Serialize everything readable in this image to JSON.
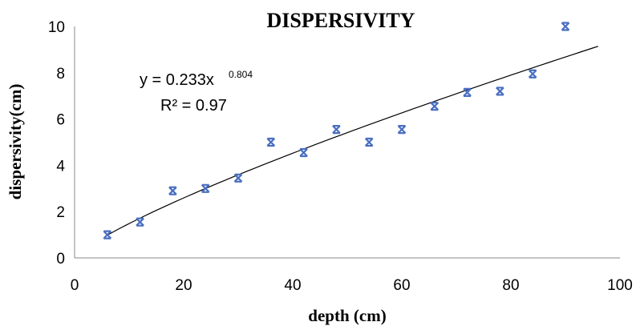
{
  "chart_data": {
    "type": "scatter",
    "title": "DISPERSIVITY",
    "xlabel": "depth (cm)",
    "ylabel": "dispersivity(cm)",
    "xlim": [
      0,
      100
    ],
    "ylim": [
      0,
      10
    ],
    "xticks": [
      "0",
      "20",
      "40",
      "60",
      "80",
      "100"
    ],
    "yticks": [
      "0",
      "2",
      "4",
      "6",
      "8",
      "10"
    ],
    "grid": false,
    "marker_color": "#4a6fc0",
    "points": [
      {
        "x": 6,
        "y": 1.0
      },
      {
        "x": 12,
        "y": 1.55
      },
      {
        "x": 18,
        "y": 2.9
      },
      {
        "x": 24,
        "y": 3.0
      },
      {
        "x": 30,
        "y": 3.45
      },
      {
        "x": 36,
        "y": 5.0
      },
      {
        "x": 42,
        "y": 4.55
      },
      {
        "x": 48,
        "y": 5.55
      },
      {
        "x": 54,
        "y": 5.0
      },
      {
        "x": 60,
        "y": 5.55
      },
      {
        "x": 66,
        "y": 6.55
      },
      {
        "x": 72,
        "y": 7.15
      },
      {
        "x": 78,
        "y": 7.2
      },
      {
        "x": 84,
        "y": 7.95
      },
      {
        "x": 90,
        "y": 10.0
      }
    ],
    "trendline": {
      "type": "power",
      "coefficient": 0.233,
      "exponent": 0.804,
      "x_range": [
        6,
        96
      ],
      "equation_base": "y = 0.233x",
      "equation_exponent": "0.804",
      "r2_label": "R² = 0.97"
    }
  }
}
